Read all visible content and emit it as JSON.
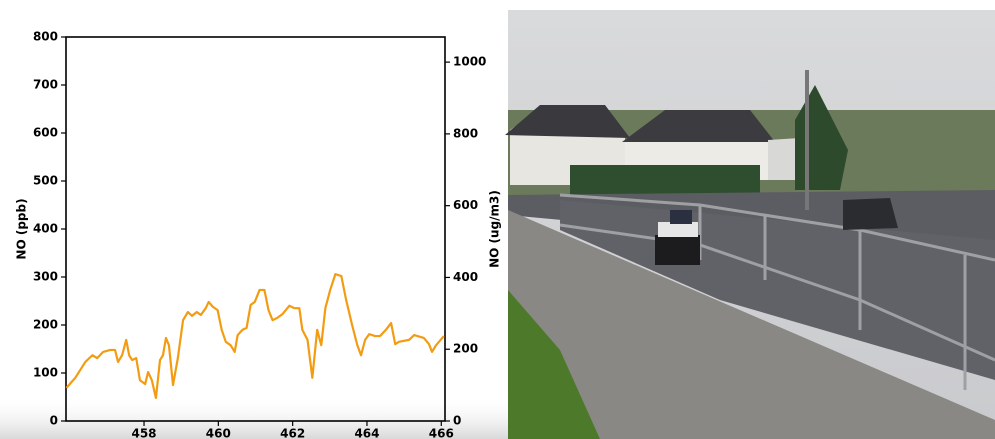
{
  "chart_data": {
    "type": "line",
    "ylabel": "NO (ppb)",
    "y2label": "NO (ug/m3)",
    "xlim": [
      455.9,
      466.1
    ],
    "xticks": [
      458,
      460,
      462,
      464,
      466
    ],
    "ylim": [
      0,
      800
    ],
    "yticks": [
      0,
      100,
      200,
      300,
      400,
      500,
      600,
      700,
      800
    ],
    "y2lim": [
      0,
      1070
    ],
    "y2ticks": [
      0,
      200,
      400,
      600,
      800,
      1000
    ],
    "series": [
      {
        "color": "#f39c12",
        "x": [
          455.91,
          456.15,
          456.42,
          456.61,
          456.74,
          456.9,
          457.09,
          457.22,
          457.3,
          457.41,
          457.52,
          457.6,
          457.68,
          457.79,
          457.89,
          458.03,
          458.11,
          458.21,
          458.32,
          458.43,
          458.51,
          458.59,
          458.67,
          458.78,
          458.91,
          459.05,
          459.18,
          459.29,
          459.42,
          459.53,
          459.66,
          459.74,
          459.85,
          459.98,
          460.09,
          460.2,
          460.33,
          460.44,
          460.52,
          460.65,
          460.76,
          460.87,
          460.98,
          461.11,
          461.24,
          461.35,
          461.46,
          461.59,
          461.73,
          461.91,
          462.05,
          462.18,
          462.26,
          462.4,
          462.53,
          462.66,
          462.77,
          462.88,
          463.01,
          463.15,
          463.31,
          463.44,
          463.6,
          463.74,
          463.84,
          463.95,
          464.06,
          464.22,
          464.35,
          464.51,
          464.65,
          464.76,
          464.86,
          465.13,
          465.27,
          465.53,
          465.67,
          465.75,
          465.86,
          466.07
        ],
        "values": [
          69,
          90,
          123,
          137,
          131,
          144,
          148,
          148,
          123,
          137,
          169,
          137,
          127,
          131,
          85,
          77,
          102,
          85,
          48,
          127,
          137,
          173,
          158,
          75,
          131,
          210,
          227,
          219,
          227,
          221,
          235,
          248,
          238,
          231,
          190,
          165,
          158,
          144,
          179,
          190,
          194,
          242,
          248,
          273,
          273,
          231,
          210,
          215,
          223,
          240,
          235,
          235,
          190,
          169,
          90,
          190,
          158,
          235,
          273,
          306,
          302,
          252,
          200,
          158,
          137,
          169,
          181,
          177,
          177,
          190,
          204,
          160,
          165,
          169,
          179,
          173,
          160,
          144,
          158,
          177
        ]
      }
    ]
  }
}
